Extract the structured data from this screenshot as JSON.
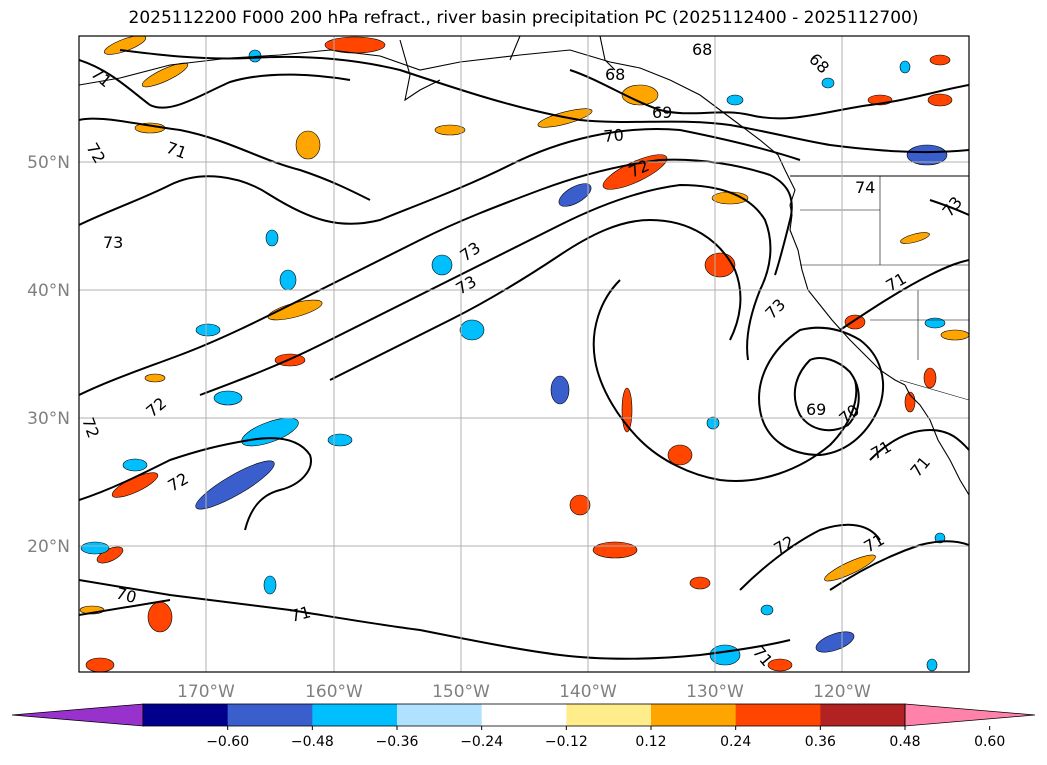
{
  "title": "2025112200 F000 200 hPa refract., river basin precipitation PC (2025112400 - 2025112700)",
  "lat_labels": [
    "50°N",
    "40°N",
    "30°N",
    "20°N"
  ],
  "lon_labels": [
    "170°W",
    "160°W",
    "150°W",
    "140°W",
    "130°W",
    "120°W"
  ],
  "colorbar": {
    "ticks": [
      "−0.60",
      "−0.48",
      "−0.36",
      "−0.24",
      "−0.12",
      "0.12",
      "0.24",
      "0.36",
      "0.48",
      "0.60"
    ],
    "colors": [
      "#9932cc",
      "#00008b",
      "#3a5fcd",
      "#00bfff",
      "#b0e2ff",
      "#ffffff",
      "#ffec8b",
      "#ffa500",
      "#ff4500",
      "#b22222",
      "#ff82ab"
    ]
  },
  "contour_labels": [
    "71",
    "72",
    "71",
    "73",
    "72",
    "72",
    "72",
    "70",
    "71",
    "73",
    "73",
    "68",
    "68",
    "69",
    "70",
    "72",
    "74",
    "73",
    "71",
    "73",
    "69",
    "70",
    "71",
    "71",
    "72",
    "71",
    "71",
    "68"
  ]
}
